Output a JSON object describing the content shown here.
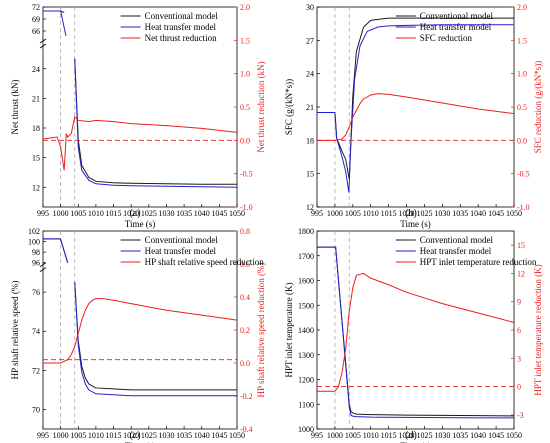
{
  "colors": {
    "black": "#1a1a1a",
    "blue": "#2222cc",
    "red": "#ee1c1c",
    "gray": "#aaaaaa"
  },
  "chart_data": [
    {
      "type": "line",
      "caption": "(a)",
      "xlabel": "Time (s)",
      "ylabel": "Net thrust (kN)",
      "y2label": "Net thrust reduction (kN)",
      "x_ticks": [
        "995",
        "1000",
        "1005",
        "1010",
        "1015",
        "1020",
        "1025",
        "1030",
        "1035",
        "1040",
        "1045",
        "1050"
      ],
      "xlim": [
        995,
        1050
      ],
      "y_break": true,
      "y_top_range": [
        64,
        72
      ],
      "y_top_ticks": [
        "66",
        "69",
        "72"
      ],
      "y_bottom_range": [
        10,
        26
      ],
      "y_bottom_ticks": [
        "12",
        "15",
        "18",
        "21",
        "24"
      ],
      "y2lim": [
        -1.0,
        2.0
      ],
      "y2_ticks": [
        "-1.0",
        "-0.5",
        "0.0",
        "0.5",
        "1.0",
        "1.5",
        "2.0"
      ],
      "legend": [
        "Conventional model",
        "Heat transfer model",
        "Net thrust reduction"
      ],
      "legend_position": "top-right",
      "vlines": [
        1000,
        1004
      ],
      "series": [
        {
          "name": "Conventional model",
          "axis": "left",
          "segments": [
            {
              "panel": "top",
              "x": [
                995,
                999.8,
                1000,
                1001
              ],
              "y": [
                71,
                71,
                71,
                70.6
              ]
            },
            {
              "panel": "bottom",
              "x": [
                1004,
                1005,
                1006,
                1008,
                1010,
                1015,
                1020,
                1030,
                1040,
                1050
              ],
              "y": [
                25,
                16.8,
                14.2,
                13.0,
                12.6,
                12.45,
                12.4,
                12.35,
                12.3,
                12.3
              ]
            }
          ]
        },
        {
          "name": "Heat transfer model",
          "axis": "left",
          "segments": [
            {
              "panel": "top",
              "x": [
                995,
                999.8,
                1000,
                1001.5
              ],
              "y": [
                71,
                71,
                71,
                64.8
              ]
            },
            {
              "panel": "bottom",
              "x": [
                1004,
                1005,
                1006,
                1008,
                1010,
                1015,
                1020,
                1030,
                1040,
                1050
              ],
              "y": [
                25,
                16,
                13.7,
                12.7,
                12.35,
                12.2,
                12.15,
                12.1,
                12.05,
                12.0
              ]
            }
          ]
        },
        {
          "name": "Net thrust reduction",
          "axis": "right",
          "x": [
            995,
            999,
            1000,
            1001,
            1001.6,
            1002,
            1003,
            1004,
            1005,
            1008,
            1010,
            1015,
            1020,
            1030,
            1040,
            1050
          ],
          "y": [
            0.02,
            0.05,
            -0.1,
            -0.45,
            0.1,
            0.05,
            0.1,
            0.35,
            0.3,
            0.28,
            0.3,
            0.28,
            0.25,
            0.22,
            0.18,
            0.12
          ]
        },
        {
          "name": "",
          "axis": "right",
          "dashed": true,
          "x": [
            995,
            1050
          ],
          "y": [
            0,
            0
          ]
        }
      ]
    },
    {
      "type": "line",
      "caption": "(b)",
      "xlabel": "Time (s)",
      "ylabel": "SFC (g/(kN*s))",
      "y2label": "SFC reduction (g/(kN*s))",
      "x_ticks": [
        "995",
        "1000",
        "1005",
        "1010",
        "1015",
        "1020",
        "1025",
        "1030",
        "1035",
        "1040",
        "1045",
        "1050"
      ],
      "xlim": [
        995,
        1050
      ],
      "ylim": [
        12,
        30
      ],
      "y_ticks": [
        "12",
        "15",
        "18",
        "21",
        "24",
        "27",
        "30"
      ],
      "y2lim": [
        -1.0,
        2.0
      ],
      "y2_ticks": [
        "-1.0",
        "-0.5",
        "0.0",
        "0.5",
        "1.0",
        "1.5",
        "2.0"
      ],
      "legend": [
        "Conventional model",
        "Heat transfer model",
        "SFC reduction"
      ],
      "legend_position": "top-right",
      "vlines": [
        1000,
        1004
      ],
      "series": [
        {
          "name": "Conventional model",
          "axis": "left",
          "x": [
            995,
            1000,
            1000.5,
            1002,
            1003,
            1004,
            1005,
            1006,
            1008,
            1010,
            1015,
            1020,
            1030,
            1040,
            1050
          ],
          "y": [
            20.5,
            20.5,
            18.2,
            17,
            16.3,
            14.5,
            22,
            26,
            28.2,
            28.8,
            29,
            29,
            29,
            29,
            29
          ]
        },
        {
          "name": "Heat transfer model",
          "axis": "left",
          "x": [
            995,
            1000,
            1000.5,
            1002,
            1003,
            1003.9,
            1004.5,
            1005.5,
            1007,
            1009,
            1012,
            1015,
            1020,
            1030,
            1040,
            1050
          ],
          "y": [
            20.5,
            20.5,
            18.2,
            16.5,
            15.2,
            13.3,
            18,
            23.5,
            26.5,
            27.8,
            28.2,
            28.3,
            28.35,
            28.4,
            28.4,
            28.4
          ]
        },
        {
          "name": "SFC reduction",
          "axis": "right",
          "x": [
            995,
            999,
            1000,
            1002,
            1003,
            1004,
            1005,
            1006,
            1007,
            1008,
            1010,
            1012,
            1015,
            1020,
            1030,
            1040,
            1050
          ],
          "y": [
            0,
            0,
            0,
            0.02,
            0.08,
            0.2,
            0.35,
            0.45,
            0.55,
            0.62,
            0.68,
            0.7,
            0.69,
            0.65,
            0.56,
            0.47,
            0.4
          ]
        },
        {
          "name": "",
          "axis": "right",
          "dashed": true,
          "x": [
            995,
            1050
          ],
          "y": [
            0,
            0
          ]
        }
      ]
    },
    {
      "type": "line",
      "caption": "(c)",
      "xlabel": "Time (s)",
      "ylabel": "HP shaft relative speed (%)",
      "y2label": "HP shaft relative speed reduction (%)",
      "x_ticks": [
        "995",
        "1000",
        "1005",
        "1010",
        "1015",
        "1020",
        "1025",
        "1030",
        "1035",
        "1040",
        "1045",
        "1050"
      ],
      "xlim": [
        995,
        1050
      ],
      "y_break": true,
      "y_top_range": [
        96,
        102
      ],
      "y_top_ticks": [
        "96",
        "98",
        "100",
        "102"
      ],
      "y_bottom_range": [
        69,
        77
      ],
      "y_bottom_ticks": [
        "70",
        "72",
        "74",
        "76"
      ],
      "y2lim": [
        -0.4,
        0.8
      ],
      "y2_ticks": [
        "-0.4",
        "-0.2",
        "0.0",
        "0.2",
        "0.4",
        "0.6",
        "0.8"
      ],
      "legend": [
        "Conventional model",
        "Heat transfer model",
        "HP shaft relative speed reduction"
      ],
      "legend_position": "top-right",
      "vlines": [
        1000,
        1004
      ],
      "series": [
        {
          "name": "Conventional model",
          "axis": "left",
          "segments": [
            {
              "panel": "top",
              "x": [
                995,
                999.8,
                1000,
                1002
              ],
              "y": [
                100.5,
                100.5,
                100.4,
                96
              ]
            },
            {
              "panel": "bottom",
              "x": [
                1004,
                1005,
                1006,
                1007,
                1008,
                1010,
                1015,
                1020,
                1030,
                1040,
                1050
              ],
              "y": [
                76.5,
                73.5,
                72.2,
                71.6,
                71.3,
                71.1,
                71.05,
                71.0,
                71.0,
                71.0,
                71.0
              ]
            }
          ]
        },
        {
          "name": "Heat transfer model",
          "axis": "left",
          "segments": [
            {
              "panel": "top",
              "x": [
                995,
                999.8,
                1000,
                1002
              ],
              "y": [
                100.5,
                100.5,
                100.4,
                96
              ]
            },
            {
              "panel": "bottom",
              "x": [
                1004,
                1005,
                1006,
                1007,
                1008,
                1010,
                1015,
                1020,
                1030,
                1040,
                1050
              ],
              "y": [
                76.5,
                73.3,
                71.9,
                71.3,
                71.0,
                70.8,
                70.75,
                70.7,
                70.7,
                70.7,
                70.7
              ]
            }
          ]
        },
        {
          "name": "HP shaft relative speed reduction",
          "axis": "right",
          "x": [
            995,
            1000,
            1002,
            1003,
            1004,
            1005,
            1006,
            1007,
            1008,
            1009,
            1010,
            1012,
            1015,
            1020,
            1030,
            1040,
            1050
          ],
          "y": [
            0.0,
            0.0,
            0.02,
            0.05,
            0.1,
            0.18,
            0.26,
            0.32,
            0.36,
            0.38,
            0.39,
            0.39,
            0.38,
            0.36,
            0.32,
            0.29,
            0.26
          ]
        },
        {
          "name": "",
          "axis": "right",
          "dashed": true,
          "x": [
            995,
            1050
          ],
          "y": [
            0.02,
            0.02
          ]
        }
      ]
    },
    {
      "type": "line",
      "caption": "(d)",
      "xlabel": "Time (s)",
      "ylabel": "HPT inlet temperature (K)",
      "y2label": "HPT inlet temperature reduction (K)",
      "x_ticks": [
        "995",
        "1000",
        "1005",
        "1010",
        "1015",
        "1020",
        "1025",
        "1030",
        "1035",
        "1040",
        "1045",
        "1050"
      ],
      "xlim": [
        995,
        1050
      ],
      "ylim": [
        1000,
        1800
      ],
      "y_ticks": [
        "1000",
        "1100",
        "1200",
        "1300",
        "1400",
        "1500",
        "1600",
        "1700",
        "1800"
      ],
      "y2lim": [
        -4.5,
        16.5
      ],
      "y2_ticks": [
        "-3",
        "0",
        "3",
        "6",
        "9",
        "12",
        "15"
      ],
      "legend": [
        "Conventional model",
        "Heat transfer model",
        "HPT inlet temperature reduction"
      ],
      "legend_position": "top-right",
      "vlines": [
        1000,
        1004
      ],
      "series": [
        {
          "name": "Conventional model",
          "axis": "left",
          "x": [
            995,
            999.8,
            1000.2,
            1004,
            1004.5,
            1005,
            1006,
            1010,
            1020,
            1030,
            1040,
            1050
          ],
          "y": [
            1735,
            1735,
            1735,
            1100,
            1070,
            1065,
            1060,
            1058,
            1056,
            1055,
            1054,
            1053
          ]
        },
        {
          "name": "Heat transfer model",
          "axis": "left",
          "x": [
            995,
            999.8,
            1000.2,
            1004,
            1004.5,
            1005,
            1006,
            1010,
            1020,
            1030,
            1040,
            1050
          ],
          "y": [
            1735,
            1735,
            1735,
            1090,
            1055,
            1052,
            1050,
            1048,
            1047,
            1046,
            1045,
            1045
          ]
        },
        {
          "name": "HPT inlet temperature reduction",
          "axis": "right",
          "x": [
            995,
            999,
            1000,
            1001,
            1002,
            1003,
            1004,
            1005,
            1006,
            1008,
            1010,
            1015,
            1020,
            1030,
            1040,
            1050
          ],
          "y": [
            -0.5,
            -0.5,
            -0.5,
            0,
            1.5,
            4,
            8,
            10.5,
            11.8,
            12,
            11.5,
            10.8,
            10,
            8.8,
            7.8,
            6.8
          ]
        },
        {
          "name": "",
          "axis": "right",
          "dashed": true,
          "x": [
            995,
            1050
          ],
          "y": [
            0,
            0
          ]
        }
      ]
    }
  ]
}
